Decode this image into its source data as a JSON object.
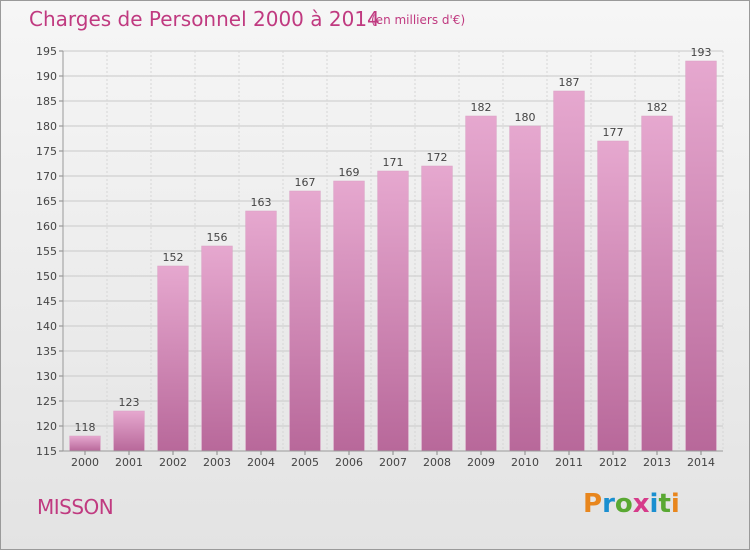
{
  "header": {
    "title": "Charges de Personnel 2000 à 2014",
    "subtitle": "(en milliers d'€)"
  },
  "footer": {
    "town": "MISSON",
    "logo_text": "Proxiti"
  },
  "colors": {
    "title": "#c03a80",
    "bar_top": "#e6a8cf",
    "bar_bottom": "#b8689a",
    "logo_letters": [
      "#e8861d",
      "#1a8fd0",
      "#59a832",
      "#d63b8a",
      "#1a8fd0",
      "#59a832",
      "#e8861d"
    ]
  },
  "chart_data": {
    "type": "bar",
    "title": "Charges de Personnel 2000 à 2014",
    "subtitle": "(en milliers d'€)",
    "categories": [
      "2000",
      "2001",
      "2002",
      "2003",
      "2004",
      "2005",
      "2006",
      "2007",
      "2008",
      "2009",
      "2010",
      "2011",
      "2012",
      "2013",
      "2014"
    ],
    "values": [
      118,
      123,
      152,
      156,
      163,
      167,
      169,
      171,
      172,
      182,
      180,
      187,
      177,
      182,
      193
    ],
    "ylim": [
      115,
      195
    ],
    "yticks": [
      115,
      120,
      125,
      130,
      135,
      140,
      145,
      150,
      155,
      160,
      165,
      170,
      175,
      180,
      185,
      190,
      195
    ],
    "grid": true,
    "data_labels": true
  }
}
